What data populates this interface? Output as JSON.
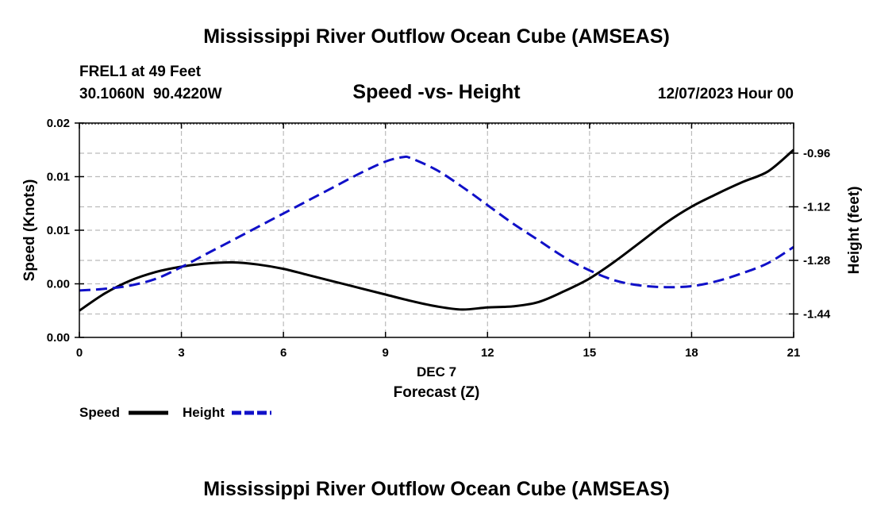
{
  "header": {
    "title_top": "Mississippi River Outflow Ocean Cube (AMSEAS)",
    "station": "FREL1 at 49 Feet",
    "coords": "30.1060N  90.4220W",
    "subtitle": "Speed -vs- Height",
    "datetime": "12/07/2023 Hour 00",
    "title_bottom": "Mississippi River Outflow Ocean Cube (AMSEAS)"
  },
  "legend": {
    "speed_label": "Speed",
    "height_label": "Height"
  },
  "colors": {
    "speed": "#000000",
    "height": "#1010c8",
    "grid": "#bbbbbb"
  },
  "chart_data": {
    "type": "line",
    "title": "Speed -vs- Height",
    "xlabel": "Forecast (Z)",
    "xlabel_date": "DEC 7",
    "ylabel_left": "Speed (Knots)",
    "ylabel_right": "Height (feet)",
    "xlim": [
      0,
      21
    ],
    "ylim_left": [
      0,
      0.02
    ],
    "ylim_right": [
      -1.51,
      -0.87
    ],
    "x_ticks": [
      0,
      3,
      6,
      9,
      12,
      15,
      18,
      21
    ],
    "x_tick_labels": [
      "0",
      "3",
      "6",
      "9",
      "12",
      "15",
      "18",
      "21"
    ],
    "y_left_ticks": [
      0,
      0.005,
      0.01,
      0.015,
      0.02
    ],
    "y_left_tick_labels": [
      "0.00",
      "0.00",
      "0.01",
      "0.01",
      "0.02"
    ],
    "y_right_ticks": [
      -0.96,
      -1.12,
      -1.28,
      -1.44
    ],
    "y_right_tick_labels": [
      "-0.96",
      "-1.12",
      "-1.28",
      "-1.44"
    ],
    "grid": true,
    "legend_position": "bottom-left",
    "series": [
      {
        "name": "Speed",
        "axis": "left",
        "style": "solid",
        "x": [
          0,
          0.75,
          1.5,
          2.25,
          3,
          3.75,
          4.5,
          5.25,
          6,
          6.75,
          7.5,
          8.25,
          9,
          9.75,
          10.5,
          11.25,
          12,
          12.75,
          13.5,
          14.25,
          15,
          15.75,
          16.5,
          17.25,
          18,
          18.75,
          19.5,
          20.25,
          21
        ],
        "values": [
          0.0025,
          0.0041,
          0.0053,
          0.0061,
          0.0066,
          0.0069,
          0.007,
          0.0068,
          0.0064,
          0.0058,
          0.0052,
          0.0046,
          0.004,
          0.0034,
          0.0029,
          0.0026,
          0.0028,
          0.0029,
          0.0033,
          0.0043,
          0.0055,
          0.0071,
          0.0089,
          0.0107,
          0.0122,
          0.0134,
          0.0145,
          0.0155,
          0.0175
        ]
      },
      {
        "name": "Height",
        "axis": "right",
        "style": "dashed",
        "x": [
          0,
          0.75,
          1.5,
          2.25,
          3,
          3.75,
          4.5,
          5.25,
          6,
          6.75,
          7.5,
          8.25,
          9,
          9.5,
          9.75,
          10.5,
          11.25,
          12,
          12.75,
          13.5,
          14.25,
          15,
          15.75,
          16.5,
          17.25,
          18,
          18.75,
          19.5,
          20.25,
          21
        ],
        "values": [
          -1.37,
          -1.365,
          -1.355,
          -1.335,
          -1.3,
          -1.26,
          -1.22,
          -1.18,
          -1.14,
          -1.1,
          -1.06,
          -1.02,
          -0.985,
          -0.972,
          -0.975,
          -1.01,
          -1.06,
          -1.115,
          -1.17,
          -1.22,
          -1.27,
          -1.31,
          -1.34,
          -1.355,
          -1.36,
          -1.357,
          -1.342,
          -1.318,
          -1.288,
          -1.24
        ]
      }
    ]
  }
}
